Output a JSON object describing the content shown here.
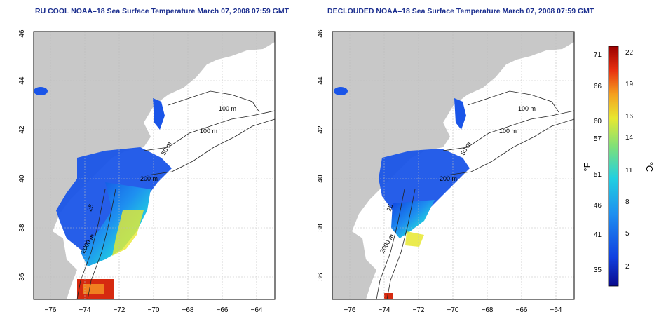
{
  "maps": [
    {
      "title": "RU COOL NOAA–18 Sea Surface Temperature March 07, 2008 07:59 GMT",
      "contour_labels": [
        "100 m",
        "100 m",
        "50 m",
        "200 m",
        "2000 m",
        "25"
      ]
    },
    {
      "title": "DECLOUDED NOAA–18 Sea Surface Temperature March 07, 2008 07:59 GMT",
      "contour_labels": [
        "100 m",
        "100 m",
        "50 m",
        "200 m",
        "2000 m",
        "25"
      ]
    }
  ],
  "axes": {
    "x_ticks": [
      "−76",
      "−74",
      "−72",
      "−70",
      "−68",
      "−66",
      "−64"
    ],
    "y_ticks": [
      "36",
      "38",
      "40",
      "42",
      "44",
      "46"
    ]
  },
  "colorbar": {
    "unit_f": "°F",
    "unit_c": "°C",
    "f_ticks": [
      "71",
      "66",
      "60",
      "57",
      "51",
      "46",
      "41",
      "35"
    ],
    "c_ticks": [
      "22",
      "19",
      "16",
      "14",
      "11",
      "8",
      "5",
      "2"
    ],
    "colors": [
      "#0a0a8c",
      "#1040e0",
      "#1e8ff0",
      "#22d0e0",
      "#7de07a",
      "#e8e830",
      "#f4a020",
      "#e83010",
      "#9a0000"
    ]
  },
  "colors": {
    "land": "#c8c8c8",
    "ocean": "#ffffff",
    "grid": "#bbbbbb",
    "title": "#1c2f8f"
  }
}
